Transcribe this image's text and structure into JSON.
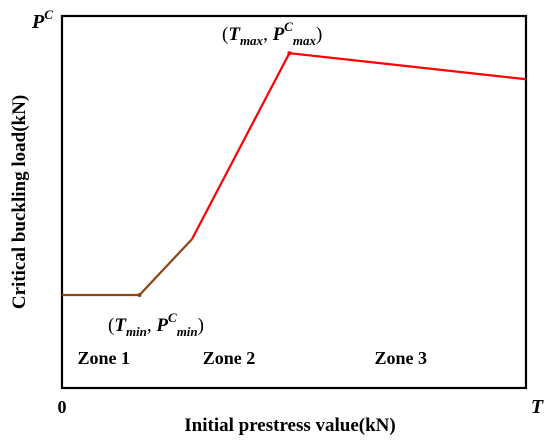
{
  "chart_data": {
    "type": "line",
    "xlabel": "Initial prestress value(kN)",
    "ylabel": "Critical buckling load(kN)",
    "x_axis": {
      "origin_label": "0",
      "end_label": "T"
    },
    "y_axis": {
      "end_label_base": "P",
      "end_label_sup": "C"
    },
    "xlim": [
      0,
      100
    ],
    "ylim": [
      0,
      100
    ],
    "series": [
      {
        "color": "#8b4513",
        "points": [
          [
            0,
            25
          ],
          [
            16.7,
            25
          ],
          [
            28,
            40
          ]
        ]
      },
      {
        "color": "#ff0000",
        "points": [
          [
            28,
            40
          ],
          [
            49,
            90
          ],
          [
            100,
            83
          ]
        ]
      }
    ],
    "annotations": [
      {
        "text": "min",
        "x": 16.7,
        "y": 25,
        "kind": "min"
      },
      {
        "text": "max",
        "x": 49,
        "y": 90,
        "kind": "max"
      }
    ],
    "zones": [
      {
        "label": "Zone 1",
        "x": 9
      },
      {
        "label": "Zone 2",
        "x": 36
      },
      {
        "label": "Zone 3",
        "x": 73
      }
    ],
    "zone_label_y": 6.5
  }
}
